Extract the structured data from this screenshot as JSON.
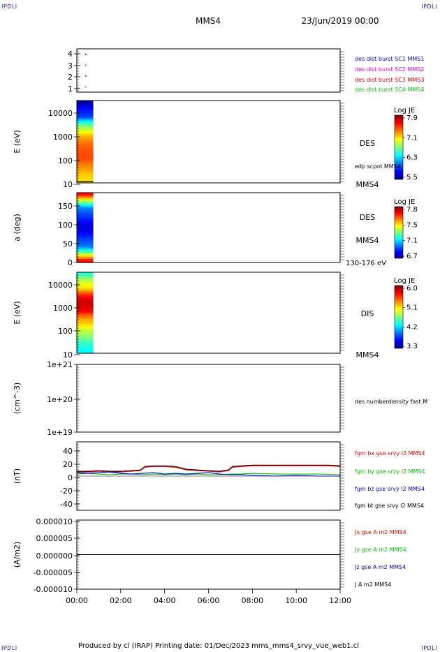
{
  "header": {
    "mark_left": "IPDLI",
    "mark_right": "IPDLI",
    "mark_bottom_left": "IPDLI",
    "mark_bottom_right": "IPDLI",
    "spacecraft": "MMS4",
    "date": "23/Jun/2019 00:00"
  },
  "footer": {
    "text": "Produced by cl (IRAP)   Printing date: 01/Dec/2023   mms_mms4_srvy_vue_web1.cl"
  },
  "colors": {
    "red": "#e00000",
    "magenta": "#e000e0",
    "blue": "#0000e0",
    "green": "#00c000",
    "black": "#000000"
  },
  "chart_data": [
    {
      "id": "p1",
      "type": "scatter",
      "yticks": [
        "4",
        "3",
        "2",
        "1"
      ],
      "ylim": [
        0.5,
        4.5
      ],
      "points": [
        {
          "x": 0.4,
          "y": 4,
          "color": "#0000e0"
        },
        {
          "x": 0.4,
          "y": 3,
          "color": "#e000e0"
        },
        {
          "x": 0.4,
          "y": 2,
          "color": "#e00000"
        },
        {
          "x": 0.4,
          "y": 1,
          "color": "#00c000"
        }
      ],
      "legend": [
        {
          "name": "des dist burst SC1 MMS1",
          "color": "#0000e0"
        },
        {
          "name": "des dist burst SC2 MMS2",
          "color": "#e000e0"
        },
        {
          "name": "des dist burst SC3 MMS3",
          "color": "#e00000"
        },
        {
          "name": "des dist burst SC4 MMS4",
          "color": "#00c000"
        }
      ]
    },
    {
      "id": "p2",
      "type": "heatmap",
      "ylabel": "E (eV)",
      "yscale": "log",
      "ylim": [
        10,
        25000
      ],
      "yticks": [
        "10000",
        "1000",
        "100",
        "10"
      ],
      "data_x_range": [
        0.0,
        0.75
      ],
      "side_labels": [
        "DES",
        "edp scpot MMS4",
        "MMS4"
      ],
      "colorbar": {
        "title": "Log JE",
        "ticks": [
          "7.9",
          "7.1",
          "6.3",
          "5.5"
        ],
        "range": [
          5.5,
          8.1
        ]
      },
      "profile": [
        {
          "y": 13,
          "v": 7.2
        },
        {
          "y": 40,
          "v": 7.4
        },
        {
          "y": 100,
          "v": 7.6
        },
        {
          "y": 400,
          "v": 7.5
        },
        {
          "y": 1500,
          "v": 7.0
        },
        {
          "y": 5000,
          "v": 6.0
        },
        {
          "y": 20000,
          "v": 5.6
        }
      ]
    },
    {
      "id": "p3",
      "type": "heatmap",
      "ylabel": "a (deg)",
      "yscale": "linear",
      "ylim": [
        0,
        180
      ],
      "yticks": [
        "150",
        "100",
        "50",
        "0"
      ],
      "data_x_range": [
        0.0,
        0.75
      ],
      "side_labels": [
        "DES",
        "MMS4",
        "130-176 eV"
      ],
      "colorbar": {
        "title": "Log JE",
        "ticks": [
          "7.8",
          "7.5",
          "7.1",
          "6.7"
        ],
        "range": [
          6.7,
          7.9
        ]
      },
      "profile": [
        {
          "y": 5,
          "v": 7.75
        },
        {
          "y": 20,
          "v": 7.4
        },
        {
          "y": 40,
          "v": 7.0
        },
        {
          "y": 90,
          "v": 6.8
        },
        {
          "y": 140,
          "v": 7.0
        },
        {
          "y": 160,
          "v": 7.4
        },
        {
          "y": 175,
          "v": 7.75
        }
      ]
    },
    {
      "id": "p4",
      "type": "heatmap",
      "ylabel": "E (eV)",
      "yscale": "log",
      "ylim": [
        10,
        25000
      ],
      "yticks": [
        "10000",
        "1000",
        "100",
        "10"
      ],
      "data_x_range": [
        0.0,
        0.75
      ],
      "side_labels": [
        "DIS",
        "MMS4"
      ],
      "colorbar": {
        "title": "Log JE",
        "ticks": [
          "6.0",
          "5.1",
          "4.2",
          "3.3"
        ],
        "range": [
          3.3,
          6.2
        ]
      },
      "profile": [
        {
          "y": 13,
          "v": 4.4
        },
        {
          "y": 50,
          "v": 4.8
        },
        {
          "y": 150,
          "v": 5.2
        },
        {
          "y": 600,
          "v": 5.9
        },
        {
          "y": 1500,
          "v": 6.0
        },
        {
          "y": 5000,
          "v": 5.2
        },
        {
          "y": 20000,
          "v": 4.5
        }
      ]
    },
    {
      "id": "p5",
      "type": "line",
      "ylabel": "(cm^-3)",
      "yscale": "log",
      "ylim": [
        1e+19,
        1e+21
      ],
      "yticks": [
        "1e+21",
        "1e+20",
        "1e+19"
      ],
      "legend": [
        {
          "name": "des numberdensity fast M",
          "color": "#000000"
        }
      ],
      "series": []
    },
    {
      "id": "p6",
      "type": "line",
      "ylabel": "(nT)",
      "ylim": [
        -50,
        50
      ],
      "yticks": [
        "40",
        "20",
        "0",
        "-20",
        "-40"
      ],
      "legend": [
        {
          "name": "fgm bx gse srvy l2 MMS4",
          "color": "#e00000"
        },
        {
          "name": "fgm by gse srvy l2 MMS4",
          "color": "#00c000"
        },
        {
          "name": "fgm bz gse srvy l2 MMS4",
          "color": "#0000e0"
        },
        {
          "name": "fgm bt gse srvy l2 MMS4",
          "color": "#000000"
        }
      ],
      "series": [
        {
          "color": "#000000",
          "x": [
            0,
            0.5,
            1.0,
            1.5,
            2.0,
            2.5,
            2.9,
            3.1,
            3.5,
            4.0,
            4.5,
            5.0,
            5.5,
            6.0,
            6.5,
            6.9,
            7.1,
            7.5,
            8.0,
            9.0,
            10.0,
            11.0,
            11.5,
            12.0
          ],
          "y": [
            7,
            7,
            8,
            7,
            7,
            8,
            9,
            14,
            15,
            15,
            14,
            10,
            9,
            8,
            7,
            9,
            14,
            15,
            16,
            16,
            16,
            16,
            16,
            15
          ]
        },
        {
          "color": "#e00000",
          "x": [
            0,
            0.5,
            1.0,
            1.5,
            2.0,
            2.5,
            2.9,
            3.1,
            3.5,
            4.0,
            4.5,
            5.0,
            5.5,
            6.0,
            6.5,
            6.9,
            7.1,
            7.5,
            8.0,
            9.0,
            10.0,
            11.0,
            11.5,
            12.0
          ],
          "y": [
            6,
            6,
            7,
            6,
            6,
            7,
            8,
            13,
            14,
            14,
            13,
            9,
            8,
            7,
            6,
            8,
            13,
            14,
            15,
            15,
            15,
            15,
            15,
            14
          ]
        },
        {
          "color": "#00c000",
          "x": [
            0,
            0.5,
            1.0,
            1.5,
            2.0,
            2.5,
            3.0,
            3.5,
            4.0,
            4.5,
            5.0,
            5.5,
            6.0,
            6.5,
            7.0,
            7.5,
            8.0,
            9.0,
            10.0,
            11.0,
            12.0
          ],
          "y": [
            3,
            4,
            3,
            2,
            3,
            3,
            2,
            3,
            2,
            3,
            2,
            3,
            2,
            2,
            3,
            3,
            4,
            3,
            3,
            3,
            2
          ]
        },
        {
          "color": "#0000e0",
          "x": [
            0,
            0.5,
            1.0,
            1.5,
            2.0,
            2.5,
            3.0,
            3.5,
            4.0,
            4.5,
            5.0,
            5.5,
            6.0,
            6.5,
            7.0,
            7.5,
            8.0,
            9.0,
            10.0,
            11.0,
            12.0
          ],
          "y": [
            5,
            4,
            5,
            6,
            4,
            3,
            4,
            5,
            3,
            4,
            3,
            4,
            5,
            3,
            2,
            2,
            1,
            0,
            1,
            0,
            0
          ]
        }
      ]
    },
    {
      "id": "p7",
      "type": "line",
      "ylabel": "(A/m2)",
      "ylim": [
        -1e-05,
        1e-05
      ],
      "yticks": [
        "0.000010",
        "0.000005",
        "0.000000",
        "-0.000005",
        "-0.000010"
      ],
      "legend": [
        {
          "name": "Jx gse A m2 MMS4",
          "color": "#e00000"
        },
        {
          "name": "Jy gse A m2 MMS4",
          "color": "#00c000"
        },
        {
          "name": "Jz gse A m2 MMS4",
          "color": "#0000e0"
        },
        {
          "name": "J A m2 MMS4",
          "color": "#000000"
        }
      ],
      "series": [
        {
          "color": "#000000",
          "x": [
            0,
            12
          ],
          "y": [
            0,
            0
          ]
        }
      ]
    }
  ],
  "xaxis": {
    "ticks": [
      "00:00",
      "02:00",
      "04:00",
      "06:00",
      "08:00",
      "10:00",
      "12:00"
    ],
    "xlim": [
      0,
      12
    ]
  }
}
